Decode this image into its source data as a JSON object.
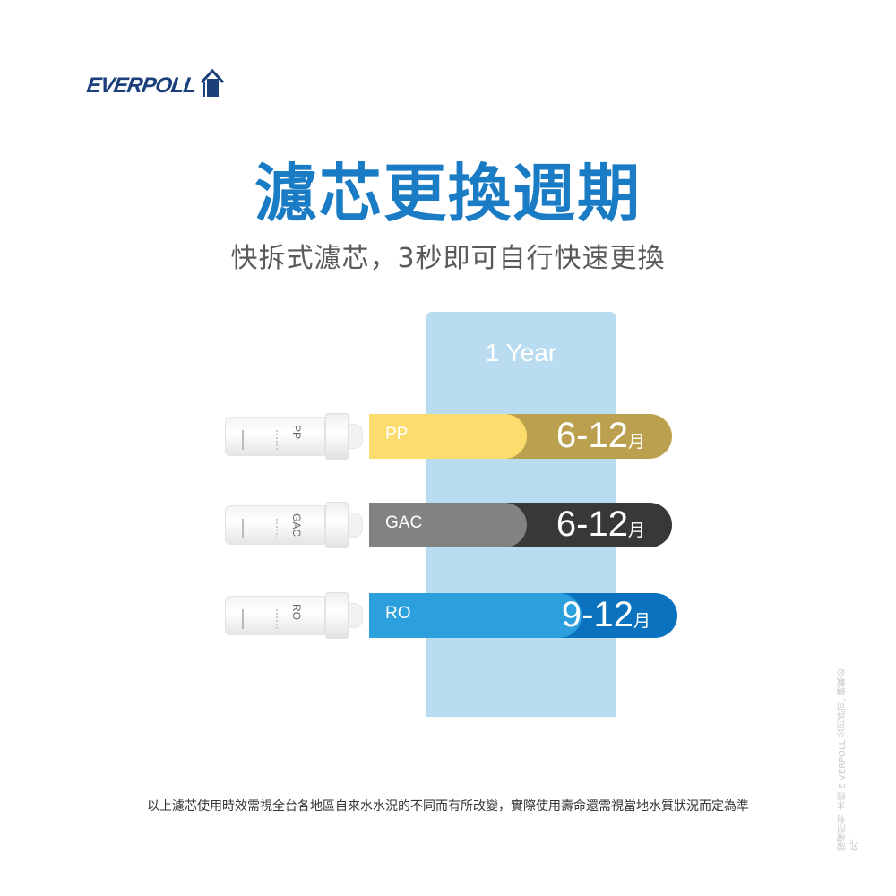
{
  "brand": {
    "logo_text": "EVERPOLL"
  },
  "title": "濾芯更換週期",
  "subtitle": "快拆式濾芯，3秒即可自行快速更換",
  "column_label": "1 Year",
  "filters": [
    {
      "name": "PP",
      "range": "6-12",
      "unit": "月",
      "light": "#fcdc6c",
      "dark": "#bba14f",
      "light_fraction": 0.52
    },
    {
      "name": "GAC",
      "range": "6-12",
      "unit": "月",
      "light": "#828282",
      "dark": "#3a3738",
      "light_fraction": 0.52
    },
    {
      "name": "RO",
      "range": "9-12",
      "unit": "月",
      "light": "#2ca0dc",
      "dark": "#0b72c0",
      "light_fraction": 0.69
    }
  ],
  "note": "以上濾芯使用時效需視全台各地區自來水水況的不同而有所改變，實際使用壽命還需視當地水質狀況而定為準",
  "copyright": "版權所有, 未經 E VERPOLL 公司許可, 轉載必究。",
  "colors": {
    "title": "#1a7cc4",
    "column": "#b9dcf0",
    "logo": "#1b3f7a"
  }
}
